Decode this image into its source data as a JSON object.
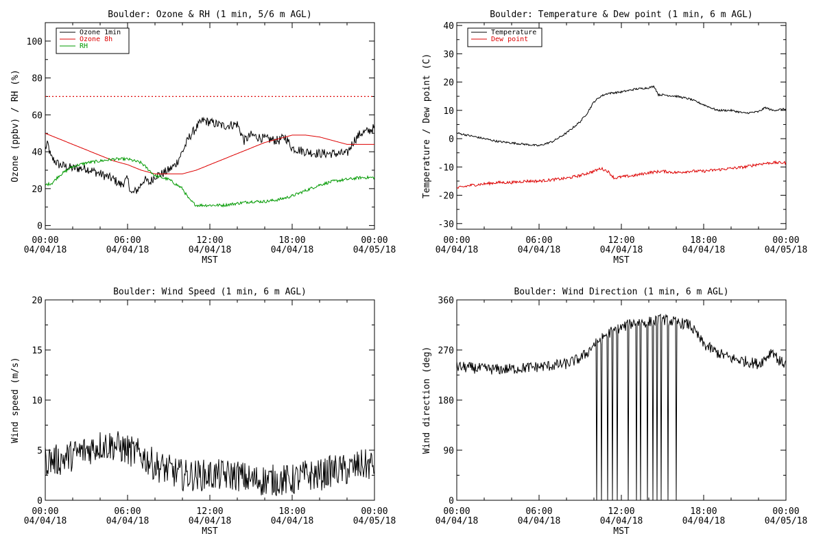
{
  "chart_data": [
    {
      "type": "line",
      "title": "Boulder: Ozone & RH (1 min, 5/6 m AGL)",
      "xlabel": "MST",
      "ylabel": "Ozone (ppbv) / RH (%)",
      "xticks_time": [
        "00:00",
        "06:00",
        "12:00",
        "18:00",
        "00:00"
      ],
      "xticks_date": [
        "04/04/18",
        "04/04/18",
        "04/04/18",
        "04/04/18",
        "04/05/18"
      ],
      "xlim_hours": [
        0,
        24
      ],
      "ylim": [
        -2,
        110
      ],
      "yticks": [
        0,
        20,
        40,
        60,
        80,
        100
      ],
      "legend_position": "top-left",
      "reference_line": {
        "y": 70,
        "style": "dotted",
        "color": "#dd0000"
      },
      "series": [
        {
          "name": "Ozone 1min",
          "color": "#000000",
          "noise": 2.5,
          "x": [
            0,
            0.2,
            0.4,
            1.0,
            2.0,
            3.0,
            4.0,
            5.0,
            5.5,
            6.0,
            6.3,
            6.8,
            7.2,
            7.6,
            8.0,
            8.5,
            9.0,
            9.5,
            10.0,
            10.5,
            11.0,
            11.5,
            12.0,
            13.0,
            14.0,
            14.5,
            15.0,
            16.0,
            17.0,
            17.5,
            18.0,
            19.0,
            20.0,
            21.0,
            22.0,
            22.5,
            23.0,
            23.5,
            24.0
          ],
          "y": [
            42,
            44,
            37,
            33,
            31,
            31,
            28,
            25,
            22,
            25,
            17,
            20,
            25,
            23,
            27,
            28,
            30,
            33,
            40,
            48,
            53,
            57,
            56,
            54,
            55,
            46,
            49,
            47,
            46,
            48,
            42,
            40,
            39,
            39,
            39,
            46,
            50,
            51,
            53
          ]
        },
        {
          "name": "Ozone 8h",
          "color": "#dd0000",
          "noise": 0,
          "x": [
            0,
            1,
            2,
            3,
            4,
            5,
            6,
            7,
            8,
            9,
            10,
            11,
            12,
            13,
            14,
            15,
            16,
            17,
            18,
            19,
            20,
            21,
            22,
            23,
            24
          ],
          "y": [
            50,
            47,
            44,
            41,
            38,
            35,
            33,
            30,
            28,
            28,
            28,
            30,
            33,
            36,
            39,
            42,
            45,
            47,
            49,
            49,
            48,
            46,
            44,
            44,
            44
          ]
        },
        {
          "name": "RH",
          "color": "#009900",
          "noise": 0.8,
          "x": [
            0,
            0.5,
            1.0,
            2.0,
            3.0,
            4.0,
            5.0,
            6.0,
            7.0,
            8.0,
            9.0,
            10.0,
            10.5,
            11.0,
            12.0,
            13.0,
            14.0,
            15.0,
            16.0,
            17.0,
            18.0,
            19.0,
            20.0,
            21.0,
            22.0,
            23.0,
            24.0
          ],
          "y": [
            22,
            23,
            27,
            32,
            34,
            35,
            36,
            36,
            34,
            27,
            25,
            20,
            14,
            11,
            11,
            11,
            12,
            13,
            13,
            14,
            16,
            19,
            22,
            24,
            25,
            26,
            26
          ]
        }
      ]
    },
    {
      "type": "line",
      "title": "Boulder: Temperature & Dew point (1 min, 6 m AGL)",
      "xlabel": "MST",
      "ylabel": "Temperature / Dew point (C)",
      "xticks_time": [
        "00:00",
        "06:00",
        "12:00",
        "18:00",
        "00:00"
      ],
      "xticks_date": [
        "04/04/18",
        "04/04/18",
        "04/04/18",
        "04/04/18",
        "04/05/18"
      ],
      "xlim_hours": [
        0,
        24
      ],
      "ylim": [
        -32,
        41
      ],
      "yticks": [
        -30,
        -20,
        -10,
        0,
        10,
        20,
        30,
        40
      ],
      "legend_position": "top-left",
      "series": [
        {
          "name": "Temperature",
          "color": "#000000",
          "noise": 0.35,
          "x": [
            0,
            1,
            2,
            3,
            4,
            5,
            6,
            7,
            8,
            9,
            9.5,
            10,
            10.5,
            11,
            12,
            13,
            14,
            14.4,
            14.7,
            15,
            16,
            17,
            18,
            19,
            20,
            21,
            22,
            22.5,
            23,
            24
          ],
          "y": [
            2,
            1,
            0,
            -1,
            -1.5,
            -2,
            -2.5,
            -1,
            2,
            6,
            9,
            13,
            15,
            16,
            16.5,
            17.5,
            18,
            18.5,
            15.5,
            15.5,
            15,
            14,
            12,
            10,
            10,
            9,
            9.5,
            11,
            10,
            10.5
          ]
        },
        {
          "name": "Dew point",
          "color": "#dd0000",
          "noise": 0.5,
          "x": [
            0,
            1,
            2,
            3,
            4,
            5,
            6,
            7,
            8,
            9,
            10,
            10.5,
            11,
            11.5,
            12,
            13,
            14,
            15,
            16,
            17,
            18,
            19,
            20,
            21,
            22,
            23,
            24
          ],
          "y": [
            -17.5,
            -16.5,
            -16,
            -15.5,
            -15.5,
            -15,
            -15,
            -14.5,
            -14,
            -13,
            -11.5,
            -10.5,
            -11.5,
            -14,
            -13.5,
            -13,
            -12,
            -11.5,
            -12,
            -11.5,
            -11.5,
            -11,
            -10.5,
            -10,
            -9,
            -8.5,
            -8.5
          ]
        }
      ]
    },
    {
      "type": "line",
      "title": "Boulder: Wind Speed (1 min, 6 m AGL)",
      "xlabel": "MST",
      "ylabel": "Wind speed (m/s)",
      "xticks_time": [
        "00:00",
        "06:00",
        "12:00",
        "18:00",
        "00:00"
      ],
      "xticks_date": [
        "04/04/18",
        "04/04/18",
        "04/04/18",
        "04/04/18",
        "04/05/18"
      ],
      "xlim_hours": [
        0,
        24
      ],
      "ylim": [
        0,
        20
      ],
      "yticks": [
        0,
        5,
        10,
        15,
        20
      ],
      "series": [
        {
          "name": "",
          "color": "#000000",
          "noise": 1.6,
          "x": [
            0,
            1,
            2,
            3,
            4,
            5,
            6,
            7,
            8,
            9,
            10,
            11,
            12,
            13,
            14,
            15,
            16,
            17,
            18,
            19,
            20,
            21,
            22,
            23,
            24
          ],
          "y": [
            4,
            4,
            4.5,
            5,
            5.5,
            5.5,
            5,
            4.5,
            3.5,
            3,
            2.5,
            2.5,
            2.5,
            2.5,
            2.5,
            2,
            2,
            2,
            2,
            2.5,
            2.5,
            3,
            3,
            3.5,
            3.5
          ]
        }
      ]
    },
    {
      "type": "line",
      "title": "Boulder: Wind Direction (1 min, 6 m AGL)",
      "xlabel": "MST",
      "ylabel": "Wind direction (deg)",
      "xticks_time": [
        "00:00",
        "06:00",
        "12:00",
        "18:00",
        "00:00"
      ],
      "xticks_date": [
        "04/04/18",
        "04/04/18",
        "04/04/18",
        "04/04/18",
        "04/05/18"
      ],
      "xlim_hours": [
        0,
        24
      ],
      "ylim": [
        0,
        360
      ],
      "yticks": [
        0,
        90,
        180,
        270,
        360
      ],
      "series": [
        {
          "name": "",
          "color": "#000000",
          "noise": 10,
          "x": [
            0,
            1,
            2,
            3,
            4,
            5,
            6,
            7,
            8,
            9,
            9.5,
            10,
            10.5,
            11,
            12,
            13,
            14,
            15,
            16,
            17,
            18,
            19,
            20,
            21,
            22,
            22.5,
            23,
            23.5,
            24
          ],
          "y": [
            240,
            238,
            236,
            235,
            236,
            238,
            240,
            242,
            245,
            255,
            265,
            280,
            290,
            300,
            310,
            320,
            320,
            325,
            320,
            315,
            280,
            265,
            255,
            250,
            245,
            255,
            270,
            250,
            245
          ]
        }
      ],
      "dropouts_hours": [
        10.2,
        10.55,
        11.0,
        11.35,
        11.7,
        12.5,
        13.1,
        13.4,
        13.9,
        14.3,
        14.6,
        14.9,
        15.4,
        16.0
      ]
    }
  ]
}
